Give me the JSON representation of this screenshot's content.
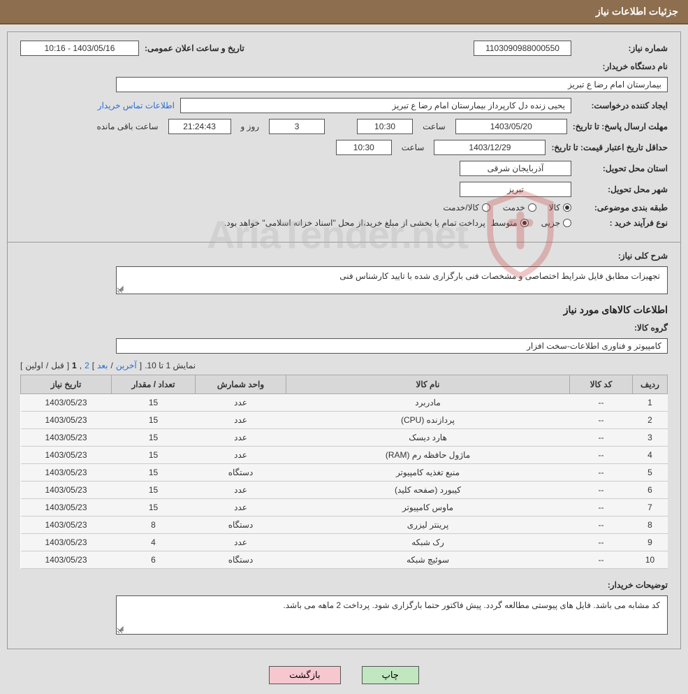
{
  "header": {
    "title": "جزئیات اطلاعات نیاز"
  },
  "form": {
    "need_no_label": "شماره نیاز:",
    "need_no": "1103090988000550",
    "announce_label": "تاریخ و ساعت اعلان عمومی:",
    "announce_value": "1403/05/16 - 10:16",
    "buyer_org_label": "نام دستگاه خریدار:",
    "buyer_org": "بیمارستان امام رضا  ع  تبریز",
    "creator_label": "ایجاد کننده درخواست:",
    "creator": "یحیی زنده دل کارپرداز بیمارستان امام رضا  ع  تبریز",
    "contact_link": "اطلاعات تماس خریدار",
    "deadline_label": "مهلت ارسال پاسخ: تا تاریخ:",
    "deadline_date": "1403/05/20",
    "time_label": "ساعت",
    "deadline_time": "10:30",
    "days_cnt": "3",
    "days_label": "روز و",
    "countdown": "21:24:43",
    "remain_label": "ساعت باقی مانده",
    "validity_label": "حداقل تاریخ اعتبار قیمت: تا تاریخ:",
    "validity_date": "1403/12/29",
    "validity_time": "10:30",
    "province_label": "استان محل تحویل:",
    "province": "آذربایجان شرقی",
    "city_label": "شهر محل تحویل:",
    "city": "تبریز",
    "subject_label": "طبقه بندی موضوعی:",
    "radio_kala": "کالا",
    "radio_khadamat": "خدمت",
    "radio_both": "کالا/خدمت",
    "proc_type_label": "نوع فرآیند خرید :",
    "radio_partial": "جزیی",
    "radio_medium": "متوسط",
    "proc_note": "پرداخت تمام یا بخشی از مبلغ خرید،از محل \"اسناد خزانه اسلامی\" خواهد بود."
  },
  "desc": {
    "label": "شرح کلی نیاز:",
    "text": "تجهیزات مطابق فایل شرایط اختصاصی و مشخصات فنی بارگزاری شده با تایید کارشناس فنی"
  },
  "items_section": {
    "title": "اطلاعات کالاهای مورد نیاز",
    "group_label": "گروه کالا:",
    "group_value": "کامپیوتر و فناوری اطلاعات-سخت افزار"
  },
  "pager": {
    "range": "نمایش 1 تا 10.",
    "open": "[",
    "last": "آخرین",
    "sep1": "/",
    "next": "بعد",
    "close_b": "]",
    "p2": "2",
    "comma": ",",
    "p1": "1",
    "open2": "[",
    "prev": "قبل",
    "sep2": "/",
    "first": "اولین",
    "close": "]"
  },
  "table": {
    "cols": [
      "ردیف",
      "کد کالا",
      "نام کالا",
      "واحد شمارش",
      "تعداد / مقدار",
      "تاریخ نیاز"
    ],
    "rows": [
      [
        "1",
        "--",
        "مادربرد",
        "عدد",
        "15",
        "1403/05/23"
      ],
      [
        "2",
        "--",
        "پردازنده (CPU)",
        "عدد",
        "15",
        "1403/05/23"
      ],
      [
        "3",
        "--",
        "هارد دیسک",
        "عدد",
        "15",
        "1403/05/23"
      ],
      [
        "4",
        "--",
        "ماژول حافظه رم (RAM)",
        "عدد",
        "15",
        "1403/05/23"
      ],
      [
        "5",
        "--",
        "منبع تغذیه کامپیوتر",
        "دستگاه",
        "15",
        "1403/05/23"
      ],
      [
        "6",
        "--",
        "کیبورد (صفحه کلید)",
        "عدد",
        "15",
        "1403/05/23"
      ],
      [
        "7",
        "--",
        "ماوس کامپیوتر",
        "عدد",
        "15",
        "1403/05/23"
      ],
      [
        "8",
        "--",
        "پرینتر لیزری",
        "دستگاه",
        "8",
        "1403/05/23"
      ],
      [
        "9",
        "--",
        "رک شبکه",
        "عدد",
        "4",
        "1403/05/23"
      ],
      [
        "10",
        "--",
        "سوئیچ شبکه",
        "دستگاه",
        "6",
        "1403/05/23"
      ]
    ]
  },
  "notes": {
    "label": "توضیحات خریدار:",
    "text": "کد مشابه می باشد. فایل های پیوستی مطالعه گردد. پیش فاکتور حتما بارگزاری شود. پرداخت 2 ماهه می باشد."
  },
  "buttons": {
    "print": "چاپ",
    "back": "بازگشت"
  },
  "watermark": {
    "text": "AriaTender.net"
  },
  "colors": {
    "header_bg": "#8d6e4e",
    "btn_print": "#c0e7c0",
    "btn_back": "#f6c7cf",
    "link": "#2b6cd4",
    "shield_stroke": "#c94545"
  }
}
